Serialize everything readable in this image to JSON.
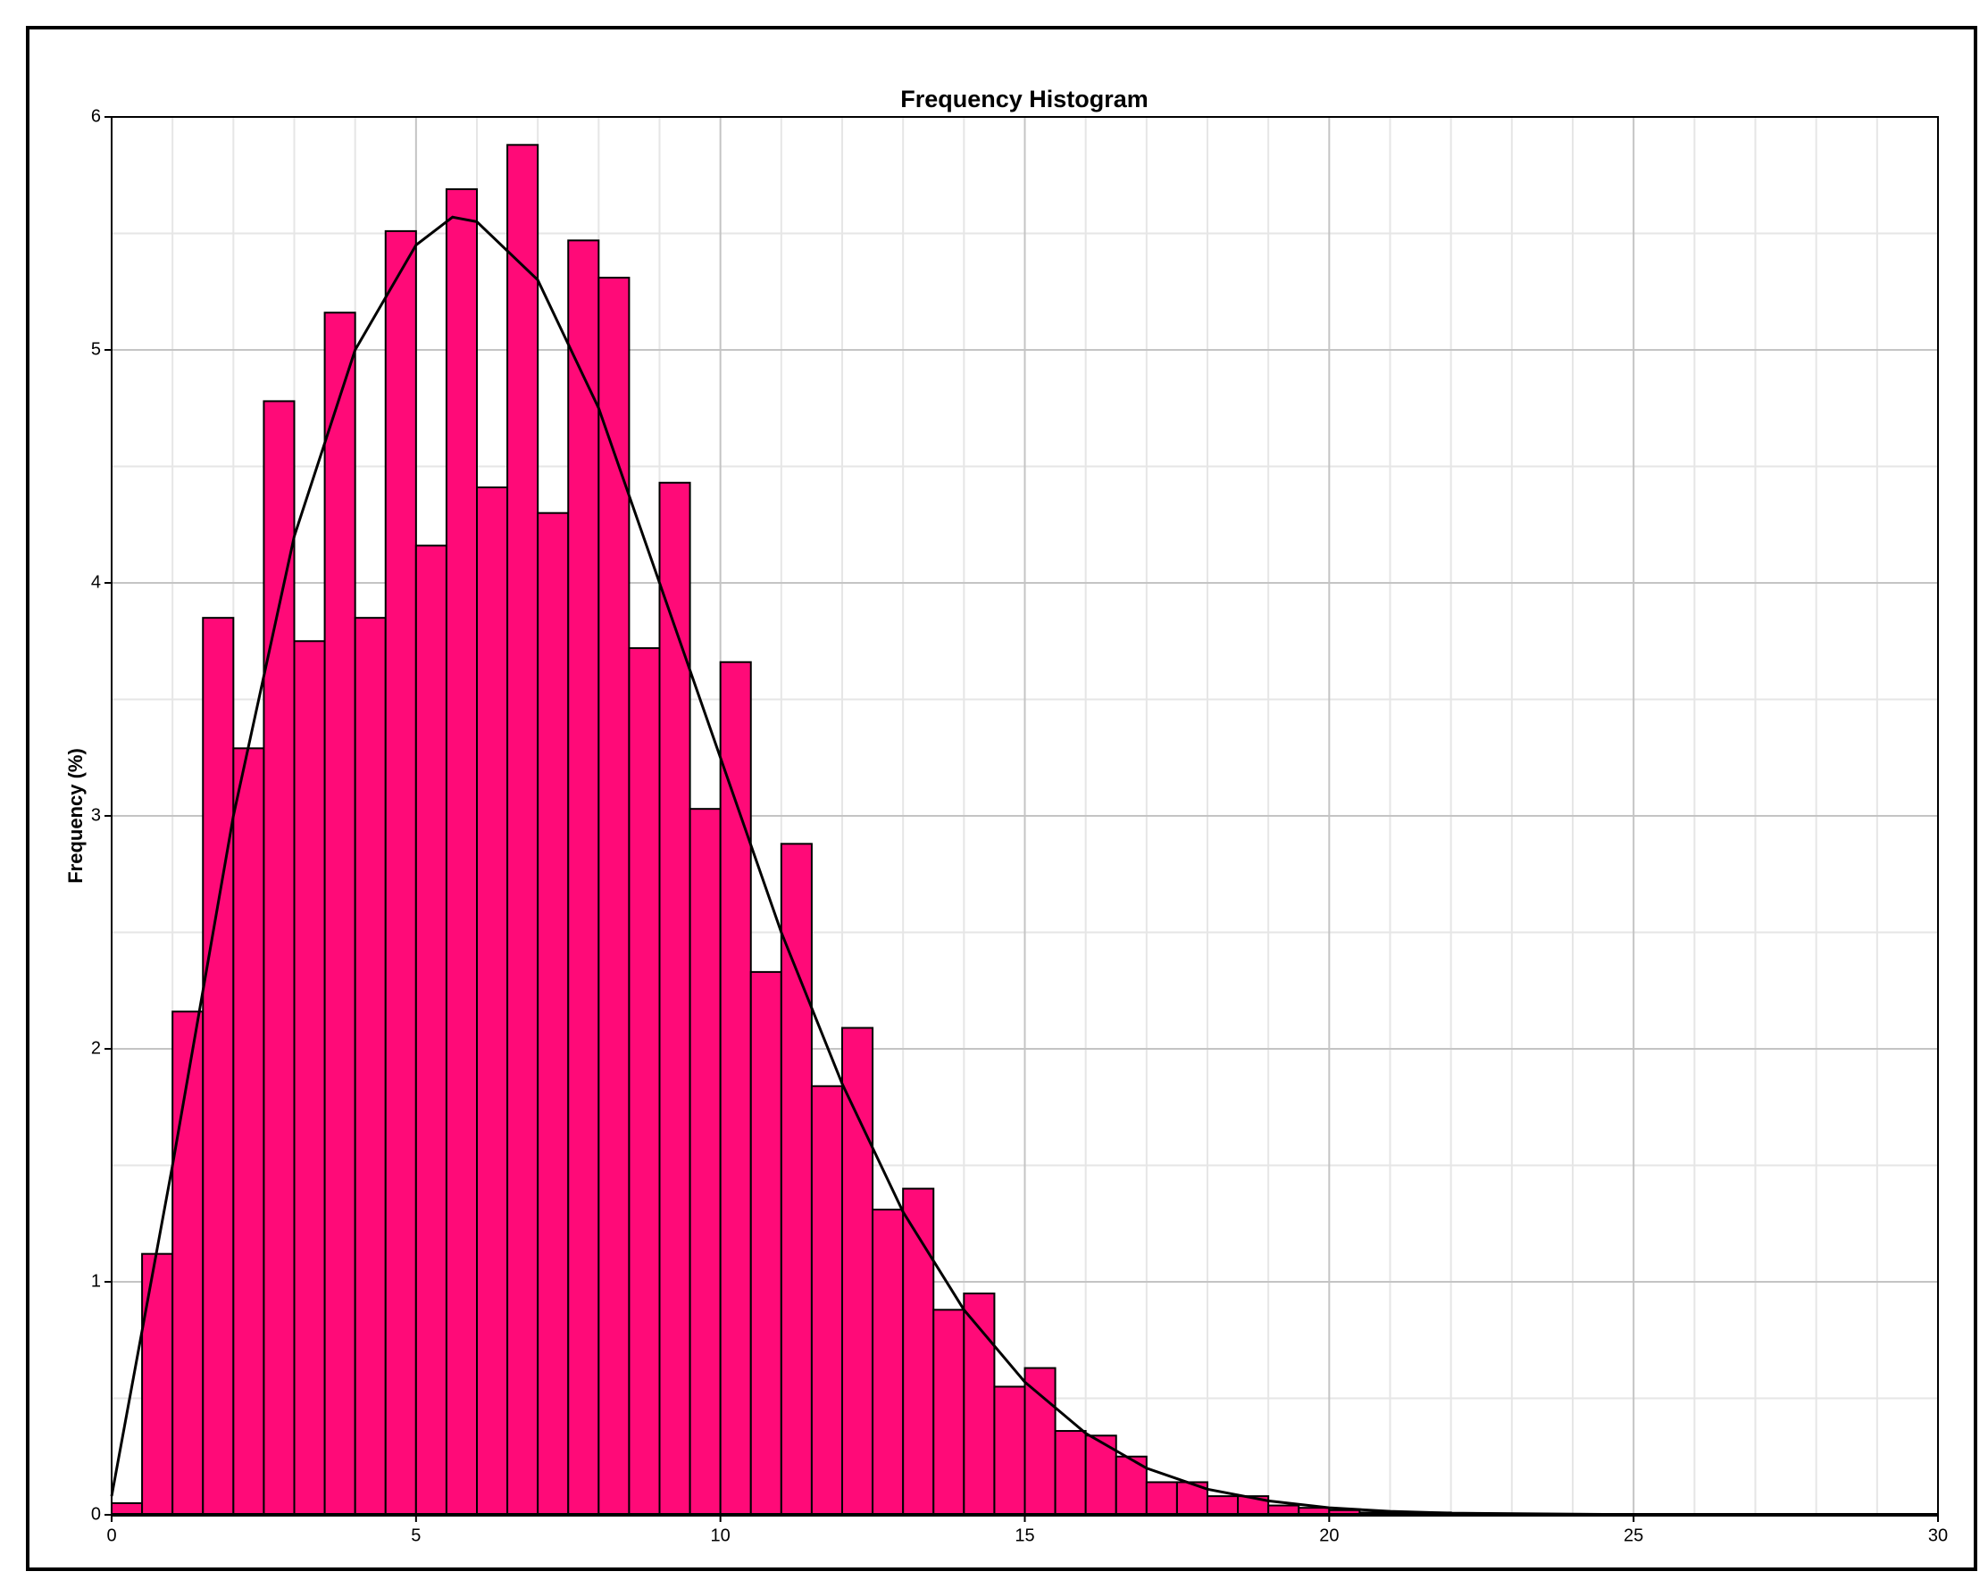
{
  "chart_data": {
    "type": "histogram",
    "title": "Frequency Histogram",
    "y_label": "Frequency (%)",
    "bins": [
      0,
      0.5,
      1,
      1.5,
      2,
      2.5,
      3,
      3.5,
      4,
      4.5,
      5,
      5.5,
      6,
      6.5,
      7,
      7.5,
      8,
      8.5,
      9,
      9.5,
      10,
      10.5,
      11,
      11.5,
      12,
      12.5,
      13,
      13.5,
      14,
      14.5,
      15,
      15.5,
      16,
      16.5,
      17,
      17.5,
      18,
      18.5,
      19,
      19.5,
      20,
      20.5,
      21,
      21.5,
      22
    ],
    "values": [
      0.05,
      1.12,
      2.16,
      3.85,
      3.29,
      4.78,
      3.75,
      5.16,
      3.85,
      5.51,
      4.16,
      5.69,
      4.41,
      5.88,
      4.3,
      5.47,
      5.31,
      3.72,
      4.43,
      3.03,
      3.66,
      2.33,
      2.88,
      1.84,
      2.09,
      1.31,
      1.4,
      0.88,
      0.95,
      0.55,
      0.63,
      0.36,
      0.34,
      0.25,
      0.14,
      0.14,
      0.08,
      0.08,
      0.04,
      0.03,
      0.02,
      0.01,
      0.01,
      0.01
    ],
    "color": "#ff0a78",
    "fit": {
      "type": "line",
      "color": "#000000",
      "x": [
        0,
        1,
        2,
        3,
        4,
        5,
        5.6,
        6,
        7,
        8,
        9,
        10,
        11,
        12,
        13,
        14,
        15,
        16,
        17,
        18,
        19,
        20,
        21,
        22,
        25,
        30
      ],
      "values": [
        0.08,
        1.5,
        3.0,
        4.2,
        5.0,
        5.45,
        5.57,
        5.55,
        5.3,
        4.75,
        4.0,
        3.25,
        2.5,
        1.85,
        1.3,
        0.88,
        0.57,
        0.35,
        0.2,
        0.11,
        0.06,
        0.03,
        0.015,
        0.007,
        0.001,
        0
      ]
    },
    "xlim": [
      0,
      30
    ],
    "xticks": [
      0,
      5,
      10,
      15,
      20,
      25,
      30
    ],
    "ylim": [
      0,
      6
    ],
    "yticks": [
      0,
      1,
      2,
      3,
      4,
      5,
      6
    ],
    "grid": true,
    "minor_grid": {
      "x": 5,
      "y": 2
    }
  }
}
